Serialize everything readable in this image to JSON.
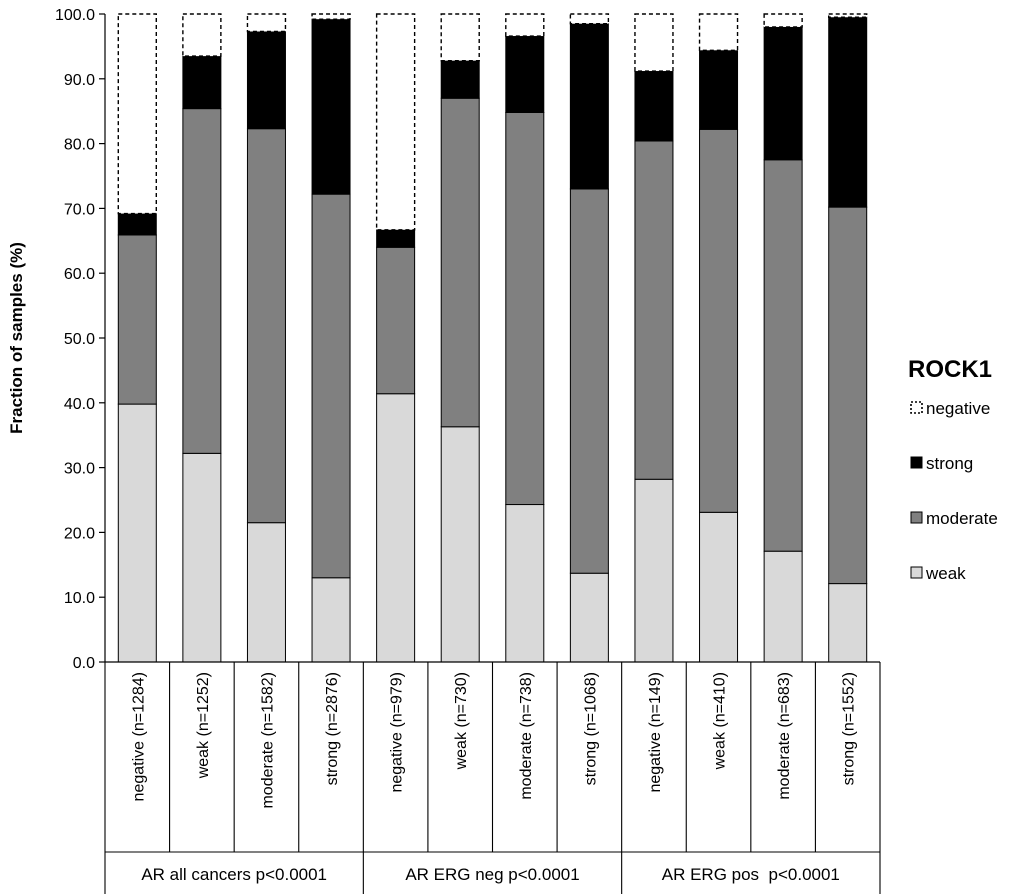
{
  "chart_data": {
    "type": "bar",
    "stacked": true,
    "title": "",
    "ylabel": "Fraction of samples (%)",
    "xlabel": "",
    "ylim": [
      0,
      100
    ],
    "yticks": [
      "0.0",
      "10.0",
      "20.0",
      "30.0",
      "40.0",
      "50.0",
      "60.0",
      "70.0",
      "80.0",
      "90.0",
      "100.0"
    ],
    "grid": false,
    "categories": [
      "negative (n=1284)",
      "weak (n=1252)",
      "moderate (n=1582)",
      "strong (n=2876)",
      "negative (n=979)",
      "weak (n=730)",
      "moderate (n=738)",
      "strong (n=1068)",
      "negative (n=149)",
      "weak (n=410)",
      "moderate (n=683)",
      "strong (n=1552)"
    ],
    "groups": [
      {
        "label": "AR all cancers p<0.0001",
        "span": 4
      },
      {
        "label": "AR ERG neg p<0.0001",
        "span": 4
      },
      {
        "label": "AR ERG pos  p<0.0001",
        "span": 4
      }
    ],
    "legend": {
      "title": "ROCK1",
      "placement": "right"
    },
    "series": [
      {
        "name": "weak",
        "color": "#d9d9d9",
        "values": [
          39.8,
          32.2,
          21.5,
          13.0,
          41.4,
          36.3,
          24.3,
          13.7,
          28.2,
          23.1,
          17.1,
          12.1
        ]
      },
      {
        "name": "moderate",
        "color": "#808080",
        "values": [
          26.1,
          53.2,
          60.8,
          59.2,
          22.6,
          50.7,
          60.5,
          59.3,
          52.2,
          59.1,
          60.4,
          58.1
        ]
      },
      {
        "name": "strong",
        "color": "#000000",
        "values": [
          3.3,
          8.1,
          15.0,
          27.0,
          2.7,
          5.8,
          11.8,
          25.5,
          10.8,
          12.2,
          20.5,
          29.3
        ]
      },
      {
        "name": "negative",
        "color": "#ffffff",
        "dashed": true,
        "values": [
          30.8,
          6.5,
          2.7,
          0.8,
          33.3,
          7.2,
          3.4,
          1.5,
          8.8,
          5.6,
          2.0,
          0.5
        ]
      }
    ],
    "legend_order": [
      "negative",
      "strong",
      "moderate",
      "weak"
    ]
  }
}
